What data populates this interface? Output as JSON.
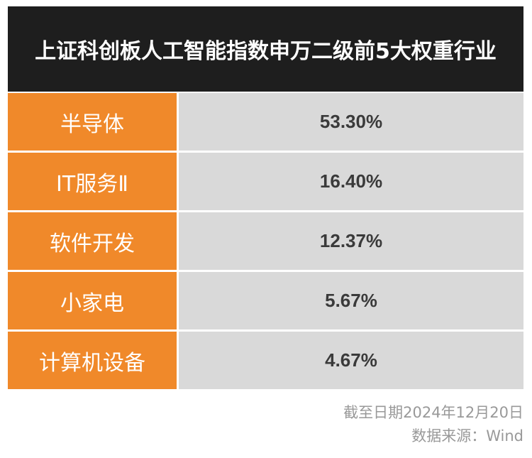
{
  "chart_data": {
    "type": "table",
    "title": "上证科创板人工智能指数申万二级前5大权重行业",
    "categories": [
      "半导体",
      "IT服务Ⅱ",
      "软件开发",
      "小家电",
      "计算机设备"
    ],
    "values": [
      53.3,
      16.4,
      12.37,
      5.67,
      4.67
    ],
    "value_labels": [
      "53.30%",
      "16.40%",
      "12.37%",
      "5.67%",
      "4.67%"
    ]
  },
  "footer": {
    "date": "截至日期2024年12月20日",
    "source": "数据来源：Wind"
  },
  "colors": {
    "header_bg": "#1e1e1e",
    "label_bg": "#f0892a",
    "value_bg": "#d9d9d9"
  }
}
